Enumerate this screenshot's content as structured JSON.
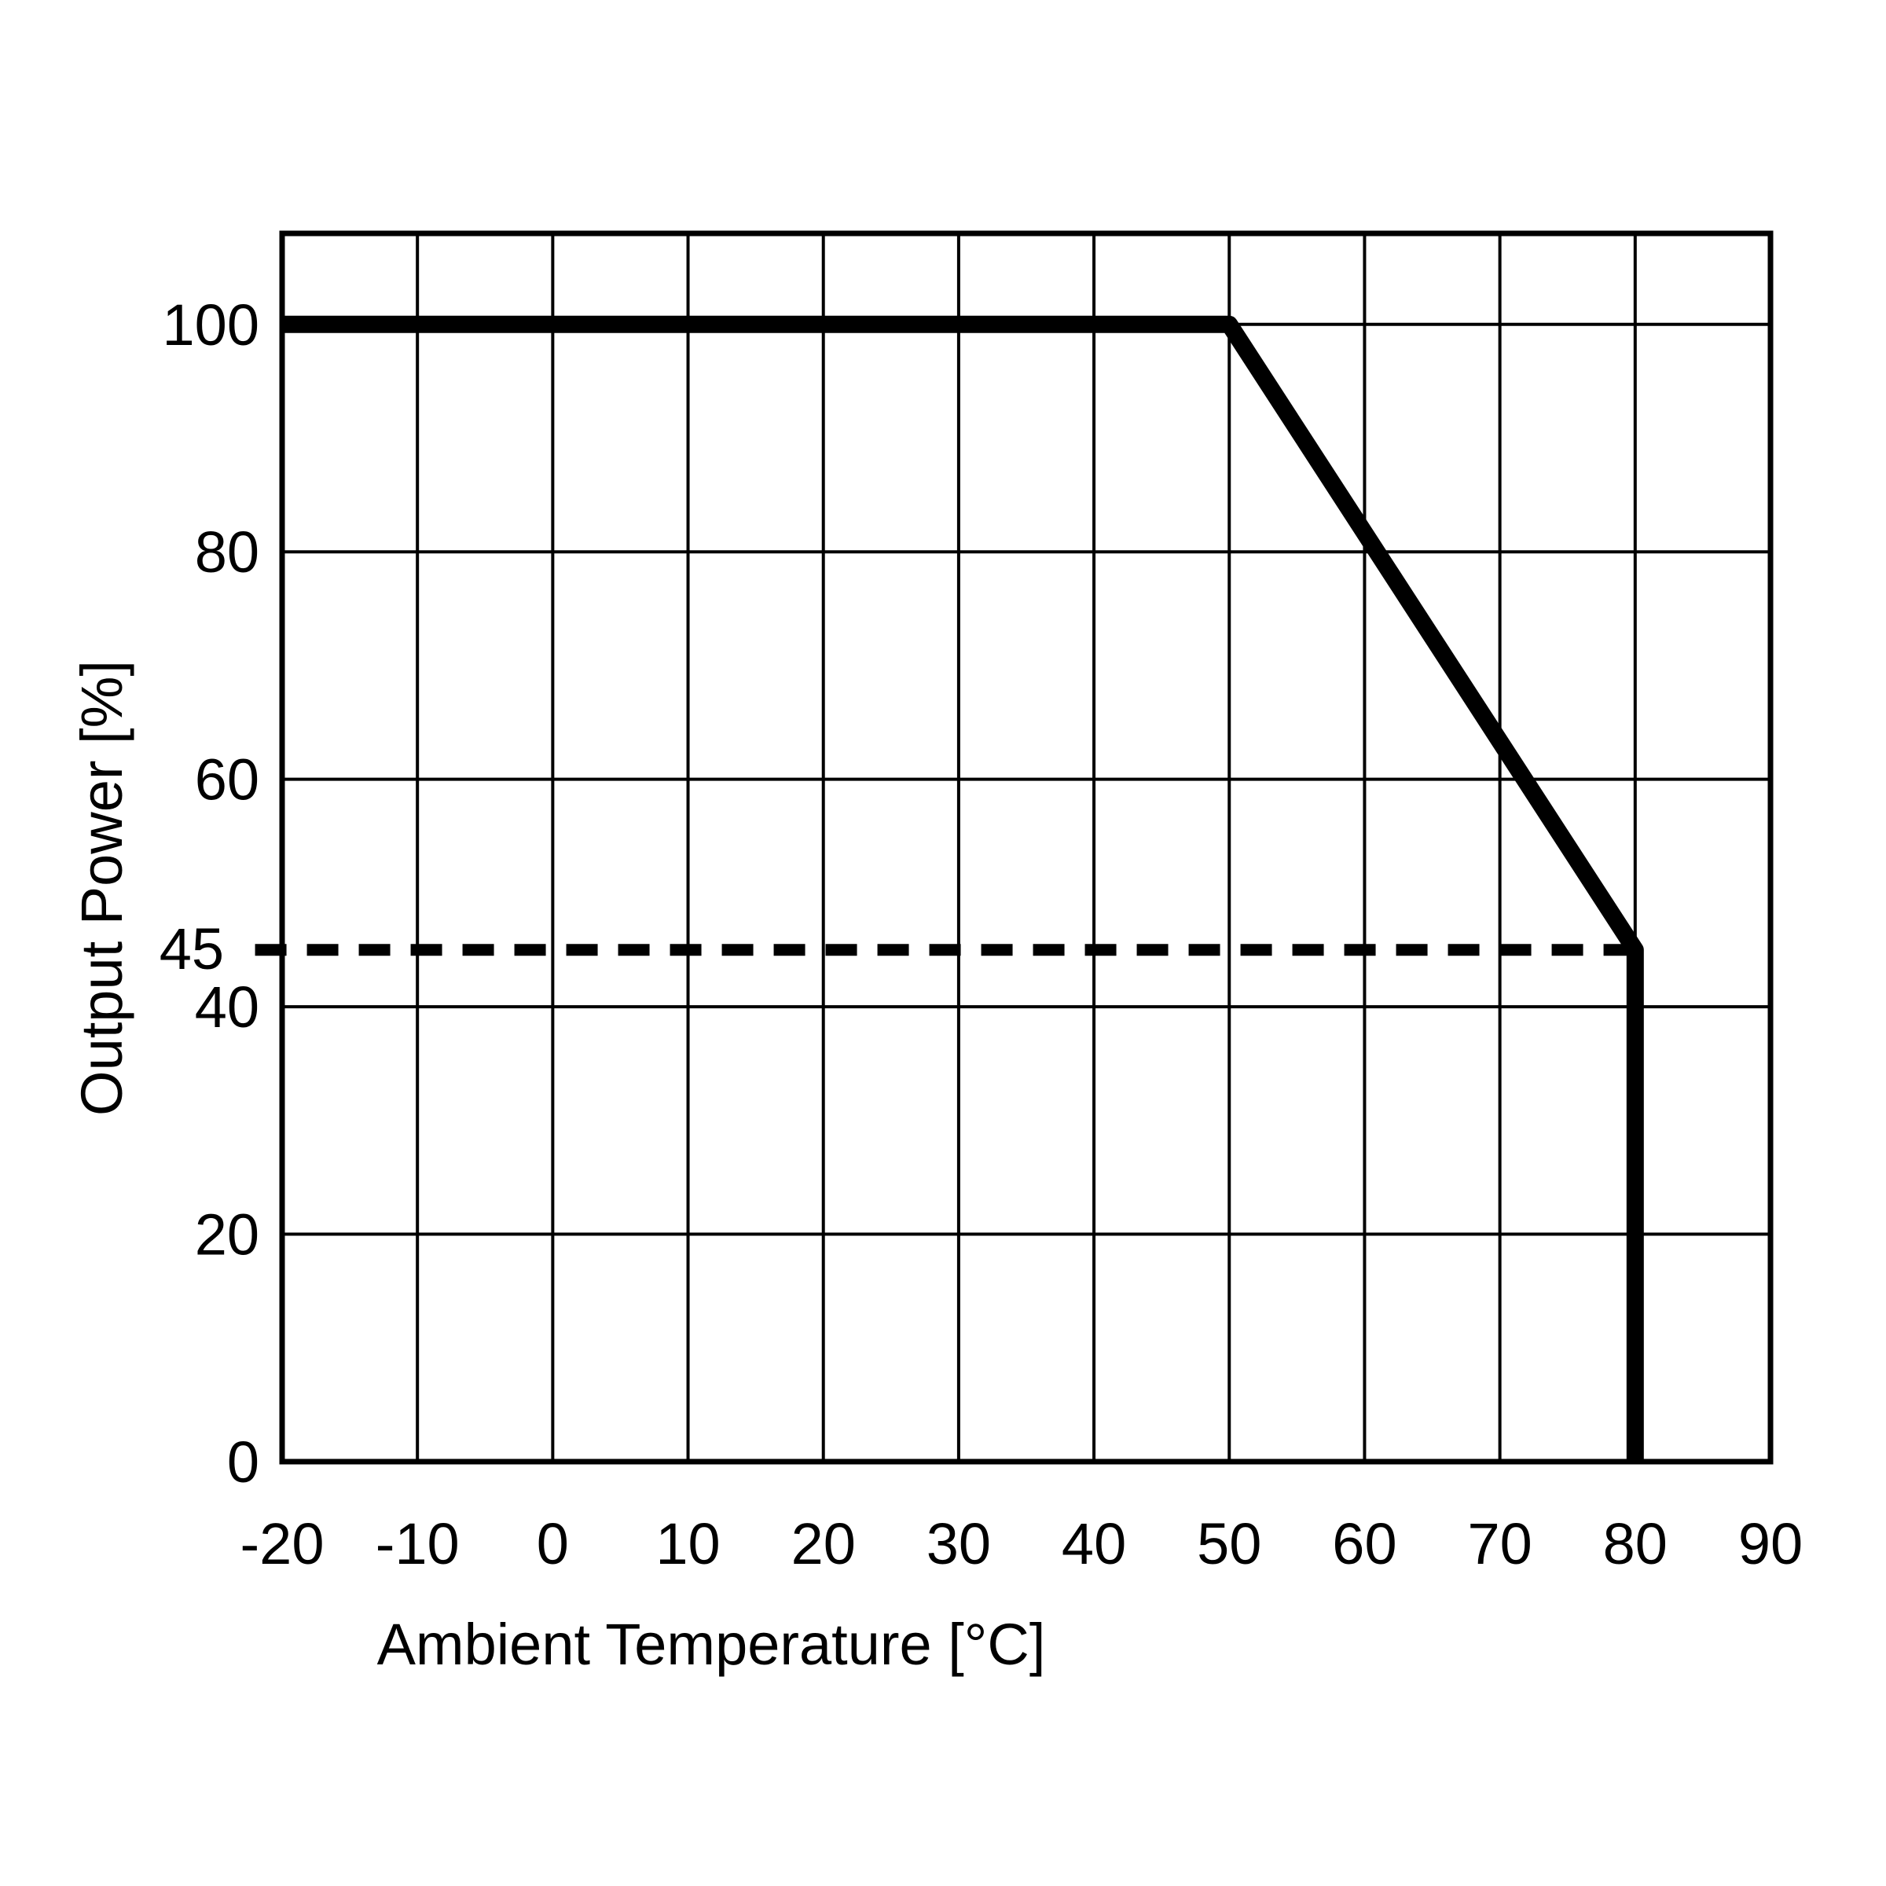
{
  "chart_data": {
    "type": "line",
    "title": "",
    "xlabel": "Ambient Temperature [°C]",
    "ylabel": "Output Power [%]",
    "xlim": [
      -20,
      90
    ],
    "ylim": [
      0,
      108
    ],
    "x_ticks": [
      -20,
      -10,
      0,
      10,
      20,
      30,
      40,
      50,
      60,
      70,
      80,
      90
    ],
    "y_ticks": [
      0,
      20,
      40,
      60,
      80,
      100
    ],
    "extra_y_tick": 45,
    "grid": true,
    "series": [
      {
        "style": "solid",
        "x": [
          -20,
          50,
          80,
          80
        ],
        "y": [
          100,
          100,
          45,
          0
        ]
      }
    ],
    "reference_lines": [
      {
        "style": "dashed",
        "orientation": "horizontal",
        "y": 45,
        "x_from": -22,
        "x_to": 80
      }
    ],
    "colors": {
      "line": "#000000",
      "grid": "#000000",
      "background": "#ffffff"
    }
  }
}
